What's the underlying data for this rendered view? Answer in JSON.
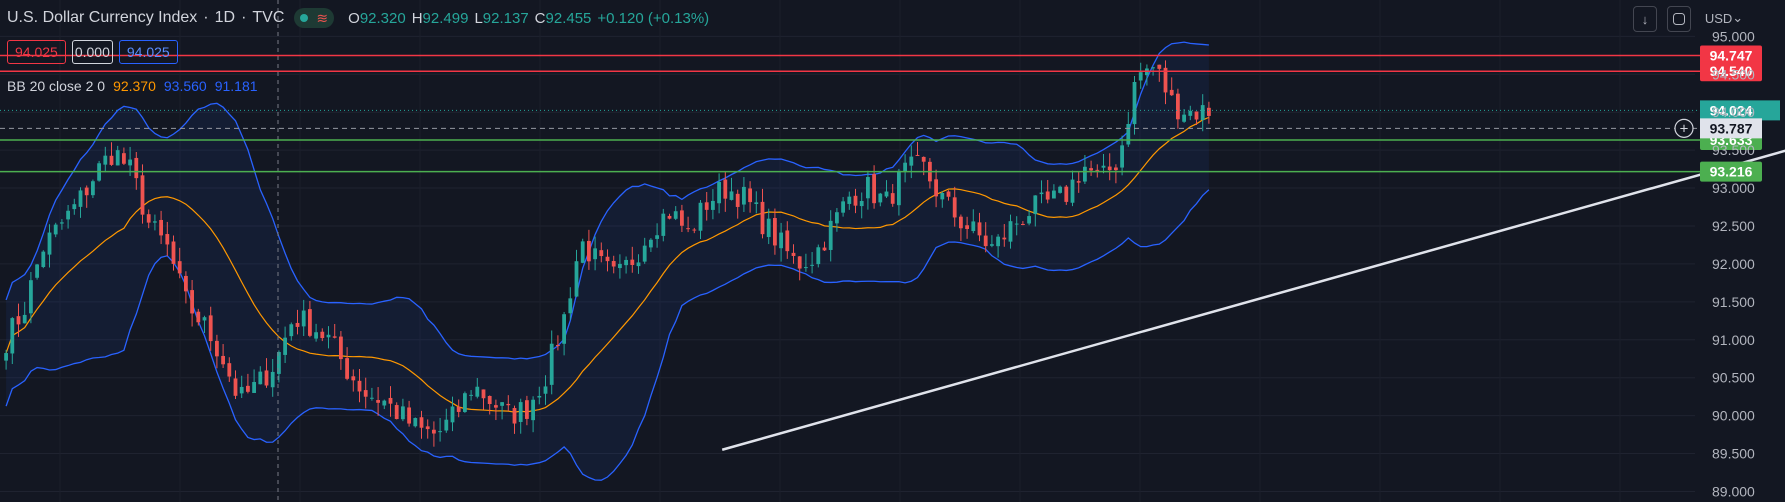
{
  "header": {
    "title": "U.S. Dollar Currency Index",
    "interval": "1D",
    "source": "TVC",
    "open_label": "O",
    "open": "92.320",
    "high_label": "H",
    "high": "92.499",
    "low_label": "L",
    "low": "92.137",
    "close_label": "C",
    "close": "92.455",
    "change": "+0.120 (+0.13%)"
  },
  "order_boxes": {
    "sell": "94.025",
    "spread": "0.000",
    "buy": "94.025"
  },
  "indicator": {
    "label": "BB 20 close 2 0",
    "basis": "92.370",
    "upper": "93.560",
    "lower": "91.181"
  },
  "toolbar": {
    "currency": "USD",
    "currency_caret": "⌄",
    "down_icon": "↓"
  },
  "colors": {
    "background": "#131722",
    "up": "#26a69a",
    "down": "#ef5350",
    "bb_band": "#2962ff",
    "bb_basis": "#ff9800",
    "resistance": "#f23645",
    "support": "#4caf50",
    "trendline": "#e0e3eb"
  },
  "chart_data": {
    "type": "candlestick",
    "title": "U.S. Dollar Currency Index · 1D · TVC",
    "y_ticks": [
      "95.000",
      "94.500",
      "94.000",
      "93.500",
      "93.000",
      "92.500",
      "92.000",
      "91.500",
      "91.000",
      "90.500",
      "90.000",
      "89.500",
      "89.000"
    ],
    "y_ticks_values": [
      95.0,
      94.5,
      94.0,
      93.5,
      93.0,
      92.5,
      92.0,
      91.5,
      91.0,
      90.5,
      90.0,
      89.5,
      89.0
    ],
    "ylim": [
      88.9,
      95.6
    ],
    "grid": true,
    "horizontal_levels": [
      {
        "value": 94.747,
        "label": "94.747",
        "kind": "resistance"
      },
      {
        "value": 94.54,
        "label": "94.540",
        "kind": "resistance"
      },
      {
        "value": 93.633,
        "label": "93.633",
        "kind": "support"
      },
      {
        "value": 93.216,
        "label": "93.216",
        "kind": "support"
      }
    ],
    "last_price_label": "94.024",
    "crosshair_label": "93.787",
    "trendline": {
      "start": {
        "bar": 116,
        "price": 89.55
      },
      "end": {
        "bar": 300,
        "price": 93.78
      }
    },
    "bollinger": {
      "period": 20,
      "multiplier": 2
    },
    "closes": [
      91.0,
      91.4,
      92.2,
      92.5,
      92.8,
      93.2,
      93.5,
      93.2,
      92.5,
      92.2,
      91.5,
      91.2,
      90.8,
      90.2,
      90.4,
      90.7,
      91.3,
      91.2,
      91.0,
      90.6,
      90.3,
      90.2,
      90.0,
      89.8,
      89.75,
      90.0,
      90.4,
      90.2,
      90.0,
      90.1,
      90.5,
      91.2,
      92.3,
      92.0,
      91.8,
      92.1,
      92.5,
      92.7,
      92.4,
      92.8,
      93.0,
      92.9,
      92.6,
      92.3,
      92.0,
      92.1,
      92.5,
      92.9,
      93.0,
      92.8,
      93.2,
      93.3,
      92.9,
      92.6,
      92.4,
      92.2,
      92.5,
      92.7,
      92.8,
      92.9,
      93.3,
      93.1,
      93.4,
      94.5,
      94.6,
      94.1,
      94.0,
      94.024
    ],
    "x_visible_bars": [
      0,
      274
    ]
  }
}
